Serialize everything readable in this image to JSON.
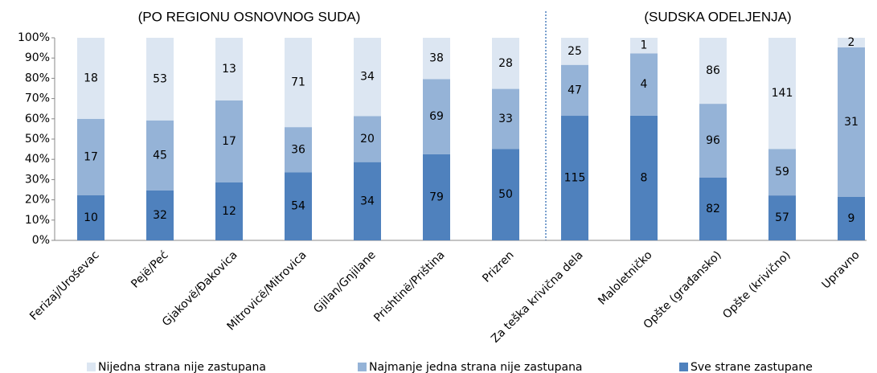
{
  "chart_data": {
    "type": "bar",
    "stacking": "percent",
    "headers": [
      "(PO REGIONU OSNOVNOG SUDA)",
      "(SUDSKA ODELJENJA)"
    ],
    "categories": [
      "Ferizaj/Uroševac",
      "Pejë/Peć",
      "Gjakovë/Đakovica",
      "Mitrovicë/Mitrovica",
      "Gjilan/Gnjilane",
      "Prishtinë/Priština",
      "Prizren",
      "Za teška krivična dela",
      "Maloletničko",
      "Opšte (građansko)",
      "Opšte (krivično)",
      "Upravno"
    ],
    "series": [
      {
        "name": "Sve strane zastupane",
        "color": "#4f81bd",
        "values": [
          10,
          32,
          12,
          54,
          34,
          79,
          50,
          115,
          8,
          82,
          57,
          9
        ]
      },
      {
        "name": "Najmanje jedna strana nije zastupana",
        "color": "#95b3d7",
        "values": [
          17,
          45,
          17,
          36,
          20,
          69,
          33,
          47,
          4,
          96,
          59,
          31
        ]
      },
      {
        "name": "Nijedna strana nije zastupana",
        "color": "#dce6f2",
        "values": [
          18,
          53,
          13,
          71,
          34,
          38,
          28,
          25,
          1,
          86,
          141,
          2
        ]
      }
    ],
    "ylim": [
      0,
      100
    ],
    "yticks": [
      {
        "value": 0,
        "label": "0%"
      },
      {
        "value": 10,
        "label": "10%"
      },
      {
        "value": 20,
        "label": "20%"
      },
      {
        "value": 30,
        "label": "30%"
      },
      {
        "value": 40,
        "label": "40%"
      },
      {
        "value": 50,
        "label": "50%"
      },
      {
        "value": 60,
        "label": "60%"
      },
      {
        "value": 70,
        "label": "70%"
      },
      {
        "value": 80,
        "label": "80%"
      },
      {
        "value": 90,
        "label": "90%"
      },
      {
        "value": 100,
        "label": "100%"
      }
    ],
    "legend": "bottom"
  }
}
